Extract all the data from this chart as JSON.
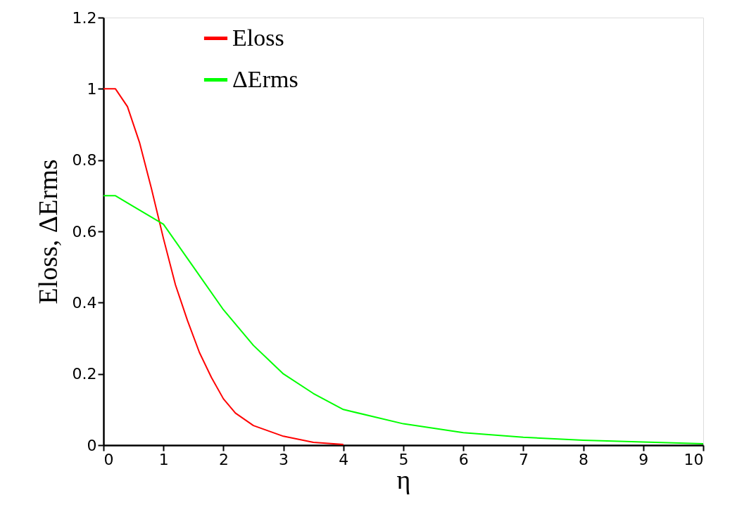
{
  "chart_data": {
    "type": "line",
    "xlabel": "η",
    "ylabel": "Eloss, ΔErms",
    "xlim": [
      0,
      10
    ],
    "xticks": [
      0,
      1,
      2,
      3,
      4,
      5,
      6,
      7,
      8,
      9,
      10
    ],
    "ylim": [
      0,
      1.2
    ],
    "yticks": [
      0,
      0.2,
      0.4,
      0.6,
      0.8,
      1,
      1.2
    ],
    "grid": false,
    "legend": "top left",
    "marker": "none",
    "line_style": "solid",
    "series": [
      {
        "name": "Eloss",
        "color": "#ff0000",
        "x": [
          0,
          0.2,
          0.4,
          0.6,
          0.8,
          1,
          1.2,
          1.4,
          1.6,
          1.8,
          2,
          2.2,
          2.5,
          3,
          3.5,
          4
        ],
        "values": [
          1.0,
          1.0,
          0.95,
          0.85,
          0.72,
          0.58,
          0.45,
          0.35,
          0.26,
          0.19,
          0.13,
          0.09,
          0.055,
          0.025,
          0.008,
          0.002
        ]
      },
      {
        "name": "ΔErms",
        "color": "#00ff00",
        "x": [
          0,
          0.2,
          0.5,
          1,
          1.5,
          2,
          2.5,
          3,
          3.5,
          4,
          5,
          6,
          7,
          8,
          9,
          10
        ],
        "values": [
          0.7,
          0.7,
          0.67,
          0.62,
          0.5,
          0.38,
          0.28,
          0.2,
          0.145,
          0.1,
          0.06,
          0.035,
          0.022,
          0.014,
          0.009,
          0.004
        ]
      }
    ]
  }
}
